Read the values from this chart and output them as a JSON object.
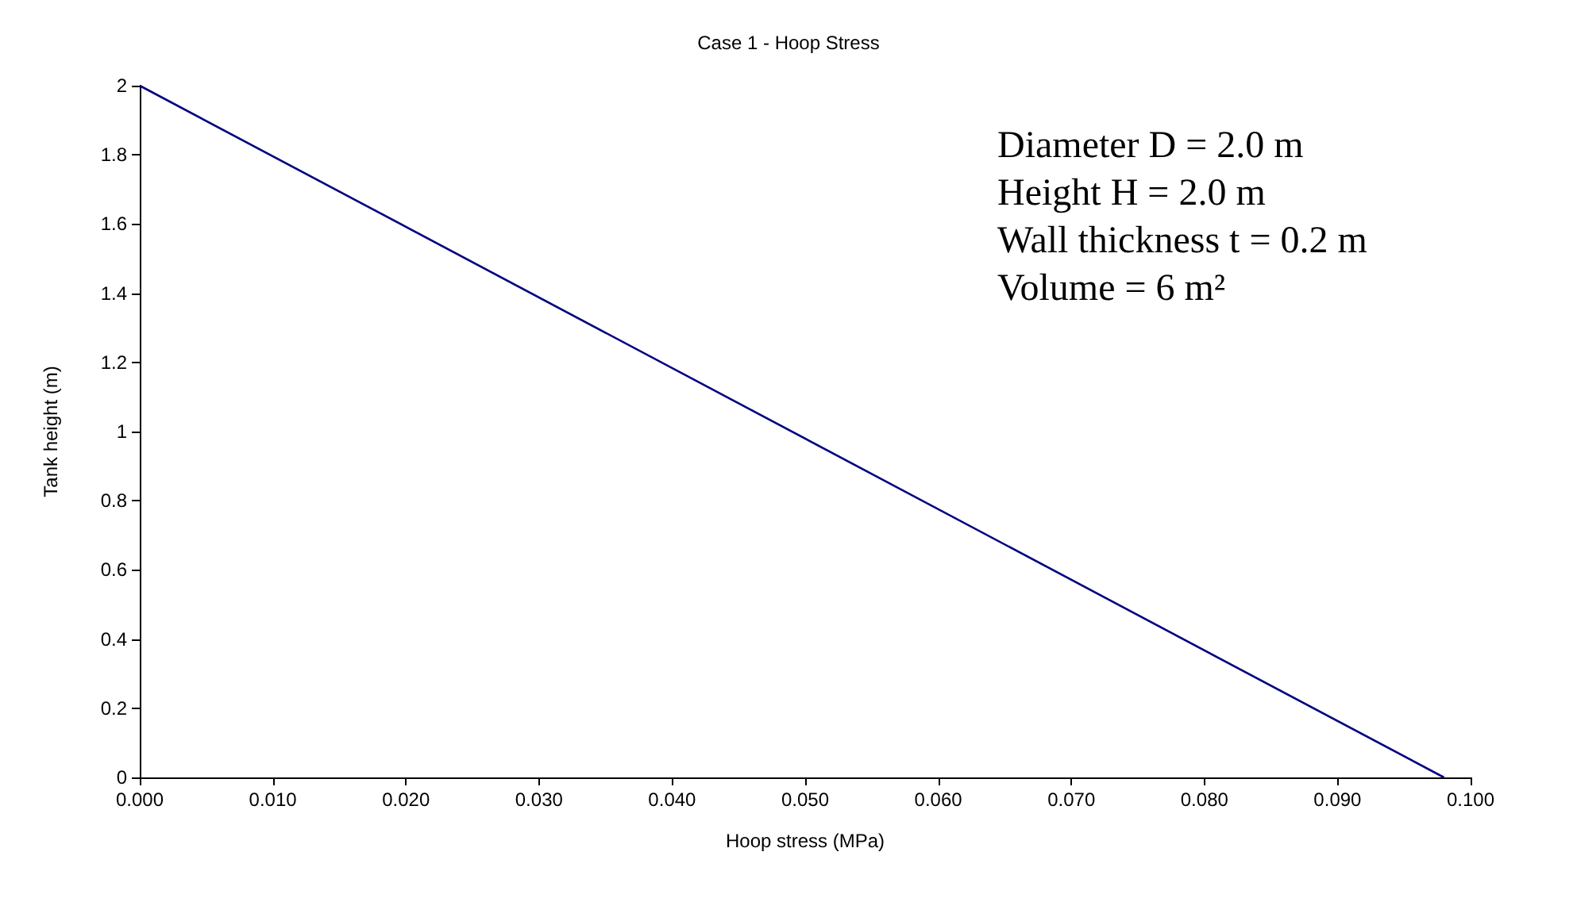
{
  "chart_data": {
    "type": "line",
    "title": "Case 1 - Hoop Stress",
    "xlabel": "Hoop stress (MPa)",
    "ylabel": "Tank height (m)",
    "x": [
      0,
      0.098
    ],
    "series": [
      {
        "color": "#000080",
        "values": [
          2,
          0
        ]
      }
    ],
    "xlim": [
      0,
      0.1
    ],
    "xticks": [
      {
        "value": 0,
        "label": "0.000"
      },
      {
        "value": 0.01,
        "label": "0.010"
      },
      {
        "value": 0.02,
        "label": "0.020"
      },
      {
        "value": 0.03,
        "label": "0.030"
      },
      {
        "value": 0.04,
        "label": "0.040"
      },
      {
        "value": 0.05,
        "label": "0.050"
      },
      {
        "value": 0.06,
        "label": "0.060"
      },
      {
        "value": 0.07,
        "label": "0.070"
      },
      {
        "value": 0.08,
        "label": "0.080"
      },
      {
        "value": 0.09,
        "label": "0.090"
      },
      {
        "value": 0.1,
        "label": "0.100"
      }
    ],
    "ylim": [
      0,
      2
    ],
    "yticks": [
      0,
      0.2,
      0.4,
      0.6,
      0.8,
      1,
      1.2,
      1.4,
      1.6,
      1.8,
      2
    ],
    "grid": false,
    "marker": "none",
    "line_style": "solid",
    "annotations": [
      "Diameter D = 2.0 m",
      "Height H = 2.0 m",
      "Wall thickness t = 0.2 m",
      "Volume = 6 m²"
    ]
  }
}
